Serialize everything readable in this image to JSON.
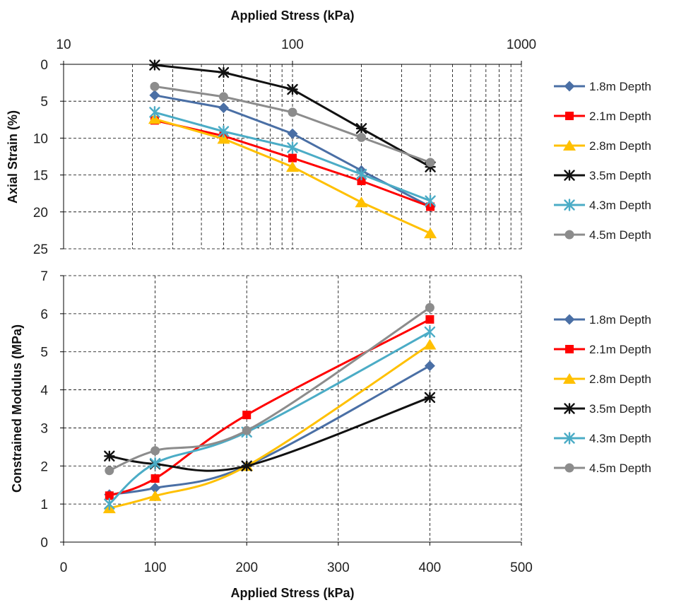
{
  "chart_data": [
    {
      "type": "line",
      "title": "",
      "xlabel": "Applied Stress (kPa)",
      "ylabel": "Axial Strain (%)",
      "x_scale": "log",
      "x_axis_position": "top",
      "y_inverted": true,
      "xlim": [
        10,
        1000
      ],
      "ylim": [
        0,
        25
      ],
      "x_ticks": [
        "10",
        "100",
        "1000"
      ],
      "y_ticks": [
        "0",
        "5",
        "10",
        "15",
        "20",
        "25"
      ],
      "grid": "dashed",
      "legend_position": "right",
      "series": [
        {
          "name": "1.8m Depth",
          "color": "#4a6fa5",
          "marker": "diamond",
          "x": [
            25,
            50,
            100,
            200,
            400
          ],
          "y": [
            4.2,
            5.9,
            9.4,
            14.4,
            19.3
          ]
        },
        {
          "name": "2.1m Depth",
          "color": "#ff0000",
          "marker": "square",
          "x": [
            25,
            50,
            100,
            200,
            400
          ],
          "y": [
            7.6,
            9.7,
            12.7,
            15.8,
            19.3
          ]
        },
        {
          "name": "2.8m Depth",
          "color": "#ffc000",
          "marker": "triangle",
          "x": [
            25,
            50,
            100,
            200,
            400
          ],
          "y": [
            7.4,
            10.1,
            13.9,
            18.7,
            22.9
          ]
        },
        {
          "name": "3.5m Depth",
          "color": "#111111",
          "marker": "asterisk",
          "x": [
            25,
            50,
            100,
            200,
            400
          ],
          "y": [
            0.1,
            1.1,
            3.4,
            8.7,
            13.9
          ]
        },
        {
          "name": "4.3m Depth",
          "color": "#4bacc6",
          "marker": "star",
          "x": [
            25,
            50,
            100,
            200,
            400
          ],
          "y": [
            6.5,
            9.1,
            11.3,
            14.9,
            18.5
          ]
        },
        {
          "name": "4.5m Depth",
          "color": "#8c8c8c",
          "marker": "circle",
          "x": [
            25,
            50,
            100,
            200,
            400
          ],
          "y": [
            3.0,
            4.4,
            6.5,
            9.9,
            13.3
          ]
        }
      ]
    },
    {
      "type": "line",
      "title": "",
      "xlabel": "Applied Stress (kPa)",
      "ylabel": "Constrained  Modulus (MPa)",
      "x_scale": "linear",
      "x_axis_position": "bottom",
      "xlim": [
        0,
        500
      ],
      "ylim": [
        0,
        7
      ],
      "x_ticks": [
        "0",
        "100",
        "200",
        "300",
        "400",
        "500"
      ],
      "y_ticks": [
        "0",
        "1",
        "2",
        "3",
        "4",
        "5",
        "6",
        "7"
      ],
      "grid": "dashed",
      "smoothed": true,
      "legend_position": "right",
      "series": [
        {
          "name": "1.8m Depth",
          "color": "#4a6fa5",
          "marker": "diamond",
          "x": [
            50,
            100,
            200,
            400
          ],
          "y": [
            1.25,
            1.42,
            2.0,
            4.63
          ]
        },
        {
          "name": "2.1m Depth",
          "color": "#ff0000",
          "marker": "square",
          "x": [
            50,
            100,
            200,
            400
          ],
          "y": [
            1.22,
            1.67,
            3.34,
            5.85
          ]
        },
        {
          "name": "2.8m Depth",
          "color": "#ffc000",
          "marker": "triangle",
          "x": [
            50,
            100,
            200,
            400
          ],
          "y": [
            0.89,
            1.21,
            2.0,
            5.19
          ]
        },
        {
          "name": "3.5m Depth",
          "color": "#111111",
          "marker": "asterisk",
          "x": [
            50,
            100,
            200,
            400
          ],
          "y": [
            2.26,
            2.05,
            2.0,
            3.8
          ]
        },
        {
          "name": "4.3m Depth",
          "color": "#4bacc6",
          "marker": "star",
          "x": [
            50,
            100,
            200,
            400
          ],
          "y": [
            1.0,
            2.07,
            2.89,
            5.52
          ]
        },
        {
          "name": "4.5m Depth",
          "color": "#8c8c8c",
          "marker": "circle",
          "x": [
            50,
            100,
            200,
            400
          ],
          "y": [
            1.88,
            2.4,
            2.93,
            6.16
          ]
        }
      ]
    }
  ]
}
